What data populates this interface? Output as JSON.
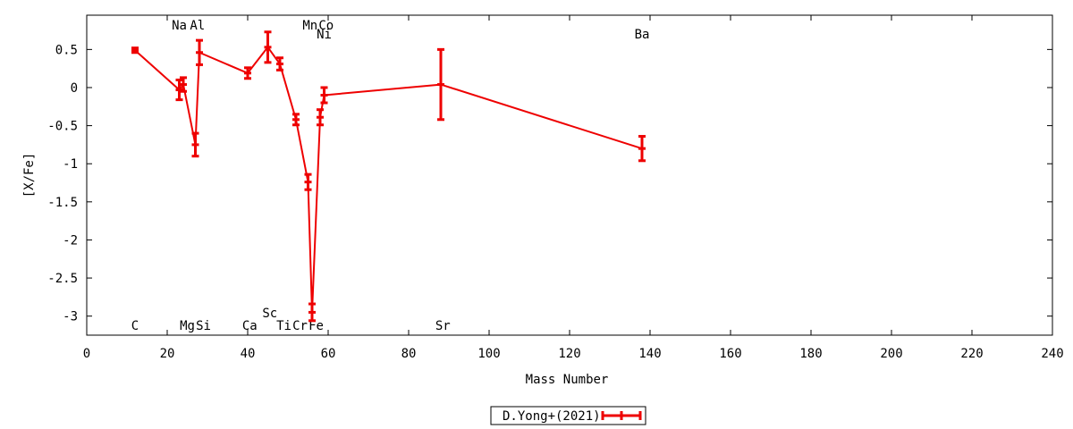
{
  "chart_data": {
    "type": "line",
    "title": "",
    "xlabel": "Mass Number",
    "ylabel": "[X/Fe]",
    "xlim": [
      0,
      240
    ],
    "ylim": [
      -3.25,
      0.95
    ],
    "x_ticks": [
      0,
      20,
      40,
      60,
      80,
      100,
      120,
      140,
      160,
      180,
      200,
      220,
      240
    ],
    "x_tick_labels": [
      "0",
      "20",
      "40",
      "60",
      "80",
      "100",
      "120",
      "140",
      "160",
      "180",
      "200",
      "220",
      "240"
    ],
    "y_ticks": [
      0.5,
      0,
      -0.5,
      -1,
      -1.5,
      -2,
      -2.5,
      -3
    ],
    "y_tick_labels": [
      "0.5",
      "0",
      "-0.5",
      "-1",
      "-1.5",
      "-2",
      "-2.5",
      "-3"
    ],
    "grid": false,
    "legend_position": "bottom-center",
    "series": [
      {
        "name": "D.Yong+(2021)",
        "color": "#ee0000",
        "points": [
          {
            "x": 12,
            "y": 0.49,
            "err": 0.03
          },
          {
            "x": 23,
            "y": -0.03,
            "err": 0.13
          },
          {
            "x": 24,
            "y": 0.04,
            "err": 0.09
          },
          {
            "x": 27,
            "y": -0.75,
            "err": 0.15
          },
          {
            "x": 28,
            "y": 0.46,
            "err": 0.16
          },
          {
            "x": 40,
            "y": 0.19,
            "err": 0.07
          },
          {
            "x": 45,
            "y": 0.53,
            "err": 0.2
          },
          {
            "x": 48,
            "y": 0.31,
            "err": 0.08
          },
          {
            "x": 52,
            "y": -0.42,
            "err": 0.07
          },
          {
            "x": 55,
            "y": -1.24,
            "err": 0.1
          },
          {
            "x": 56,
            "y": -2.95,
            "err": 0.11
          },
          {
            "x": 58,
            "y": -0.39,
            "err": 0.1
          },
          {
            "x": 59,
            "y": -0.1,
            "err": 0.1
          },
          {
            "x": 88,
            "y": 0.04,
            "err": 0.46
          },
          {
            "x": 138,
            "y": -0.8,
            "err": 0.16
          }
        ]
      }
    ],
    "element_labels": [
      {
        "text": "C",
        "x": 12,
        "row": "bottom"
      },
      {
        "text": "Na",
        "x": 23,
        "row": "top"
      },
      {
        "text": "Al",
        "x": 27.5,
        "row": "top"
      },
      {
        "text": "Mg",
        "x": 25,
        "row": "bottom"
      },
      {
        "text": "Si",
        "x": 29,
        "row": "bottom"
      },
      {
        "text": "Ca",
        "x": 40.5,
        "row": "bottom"
      },
      {
        "text": "Sc",
        "x": 45.5,
        "row": "lower"
      },
      {
        "text": "Ti",
        "x": 49,
        "row": "bottom"
      },
      {
        "text": "Cr",
        "x": 53,
        "row": "bottom"
      },
      {
        "text": "Fe",
        "x": 57,
        "row": "bottom"
      },
      {
        "text": "Mn",
        "x": 55.5,
        "row": "top"
      },
      {
        "text": "Co",
        "x": 59.5,
        "row": "top"
      },
      {
        "text": "Ni",
        "x": 59,
        "row": "upper"
      },
      {
        "text": "Sr",
        "x": 88.5,
        "row": "bottom"
      },
      {
        "text": "Ba",
        "x": 138,
        "row": "upper"
      }
    ]
  }
}
